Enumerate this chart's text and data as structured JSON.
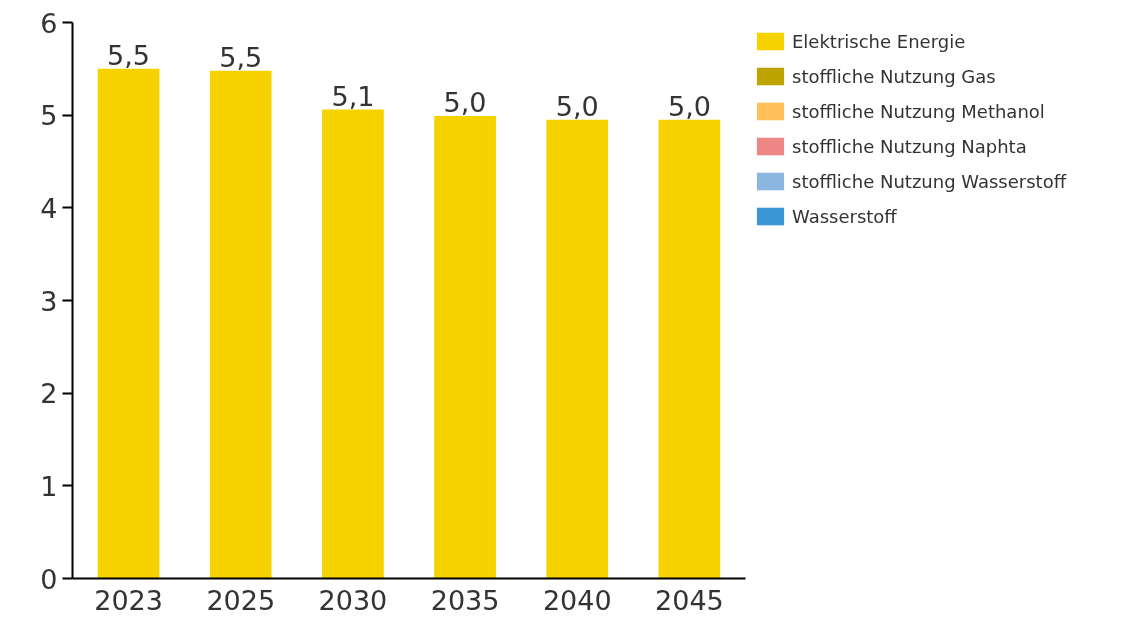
{
  "chart_data": {
    "type": "bar",
    "categories": [
      "2023",
      "2025",
      "2030",
      "2035",
      "2040",
      "2045"
    ],
    "series": [
      {
        "name": "Elektrische Energie",
        "color": "#f5d200",
        "values": [
          5.5,
          5.48,
          5.06,
          4.99,
          4.95,
          4.95
        ]
      },
      {
        "name": "stoffliche Nutzung Gas",
        "color": "#bfa300",
        "values": [
          0,
          0,
          0,
          0,
          0,
          0
        ]
      },
      {
        "name": "stoffliche Nutzung Methanol",
        "color": "#ffc05a",
        "values": [
          0,
          0,
          0,
          0,
          0,
          0
        ]
      },
      {
        "name": "stoffliche Nutzung Naphta",
        "color": "#ee8686",
        "values": [
          0,
          0,
          0,
          0,
          0,
          0
        ]
      },
      {
        "name": "stoffliche Nutzung Wasserstoff",
        "color": "#8cb6e0",
        "values": [
          0,
          0,
          0,
          0,
          0,
          0
        ]
      },
      {
        "name": "Wasserstoff",
        "color": "#3a96d6",
        "values": [
          0,
          0,
          0,
          0,
          0,
          0
        ]
      }
    ],
    "totals": [
      "5,5",
      "5,5",
      "5,1",
      "5,0",
      "5,0",
      "5,0"
    ],
    "ylim": [
      0,
      6
    ],
    "yticks": [
      0,
      1,
      2,
      3,
      4,
      5,
      6
    ],
    "grid": false,
    "legend": "top right"
  }
}
